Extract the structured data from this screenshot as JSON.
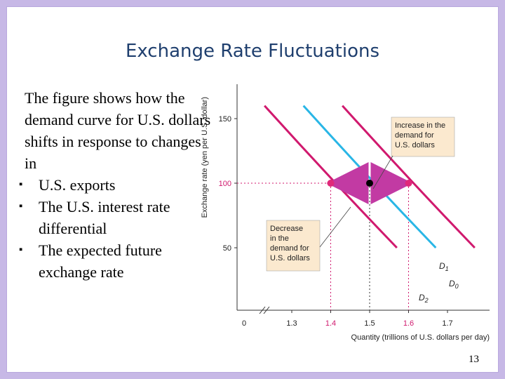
{
  "slide": {
    "title": "Exchange Rate Fluctuations",
    "intro": "The figure shows how the demand curve for U.S. dollars shifts in response to changes in",
    "bullets": [
      "U.S. exports",
      "The U.S. interest rate differential",
      "The expected future exchange rate"
    ],
    "page_number": "13"
  },
  "chart_data": {
    "type": "line",
    "ylabel": "Exchange rate (yen per U.S. dollar)",
    "xlabel": "Quantity (trillions of U.S. dollars per day)",
    "x_ticks": [
      "0",
      "1.3",
      "1.4",
      "1.5",
      "1.6",
      "1.7"
    ],
    "y_ticks": [
      "50",
      "100",
      "150"
    ],
    "series": [
      {
        "name": "D1",
        "x": [
          1.43,
          1.6,
          1.77
        ],
        "y": [
          160,
          100,
          50
        ]
      },
      {
        "name": "D0",
        "x": [
          1.33,
          1.5,
          1.67
        ],
        "y": [
          160,
          100,
          50
        ]
      },
      {
        "name": "D2",
        "x": [
          1.23,
          1.4,
          1.57
        ],
        "y": [
          160,
          100,
          50
        ]
      }
    ],
    "points": [
      {
        "x": 1.4,
        "y": 100,
        "color": "#e0297a"
      },
      {
        "x": 1.5,
        "y": 100,
        "color": "#000000"
      },
      {
        "x": 1.6,
        "y": 100,
        "color": "#e0297a"
      }
    ],
    "annotations": {
      "increase": "Increase in the demand for U.S. dollars",
      "decrease": "Decrease in the demand for U.S. dollars"
    },
    "colors": {
      "d0": "#29b6e6",
      "shifted": "#d0196e",
      "label_box": "#fbe9cf",
      "arrow": "#c23aa3"
    }
  }
}
